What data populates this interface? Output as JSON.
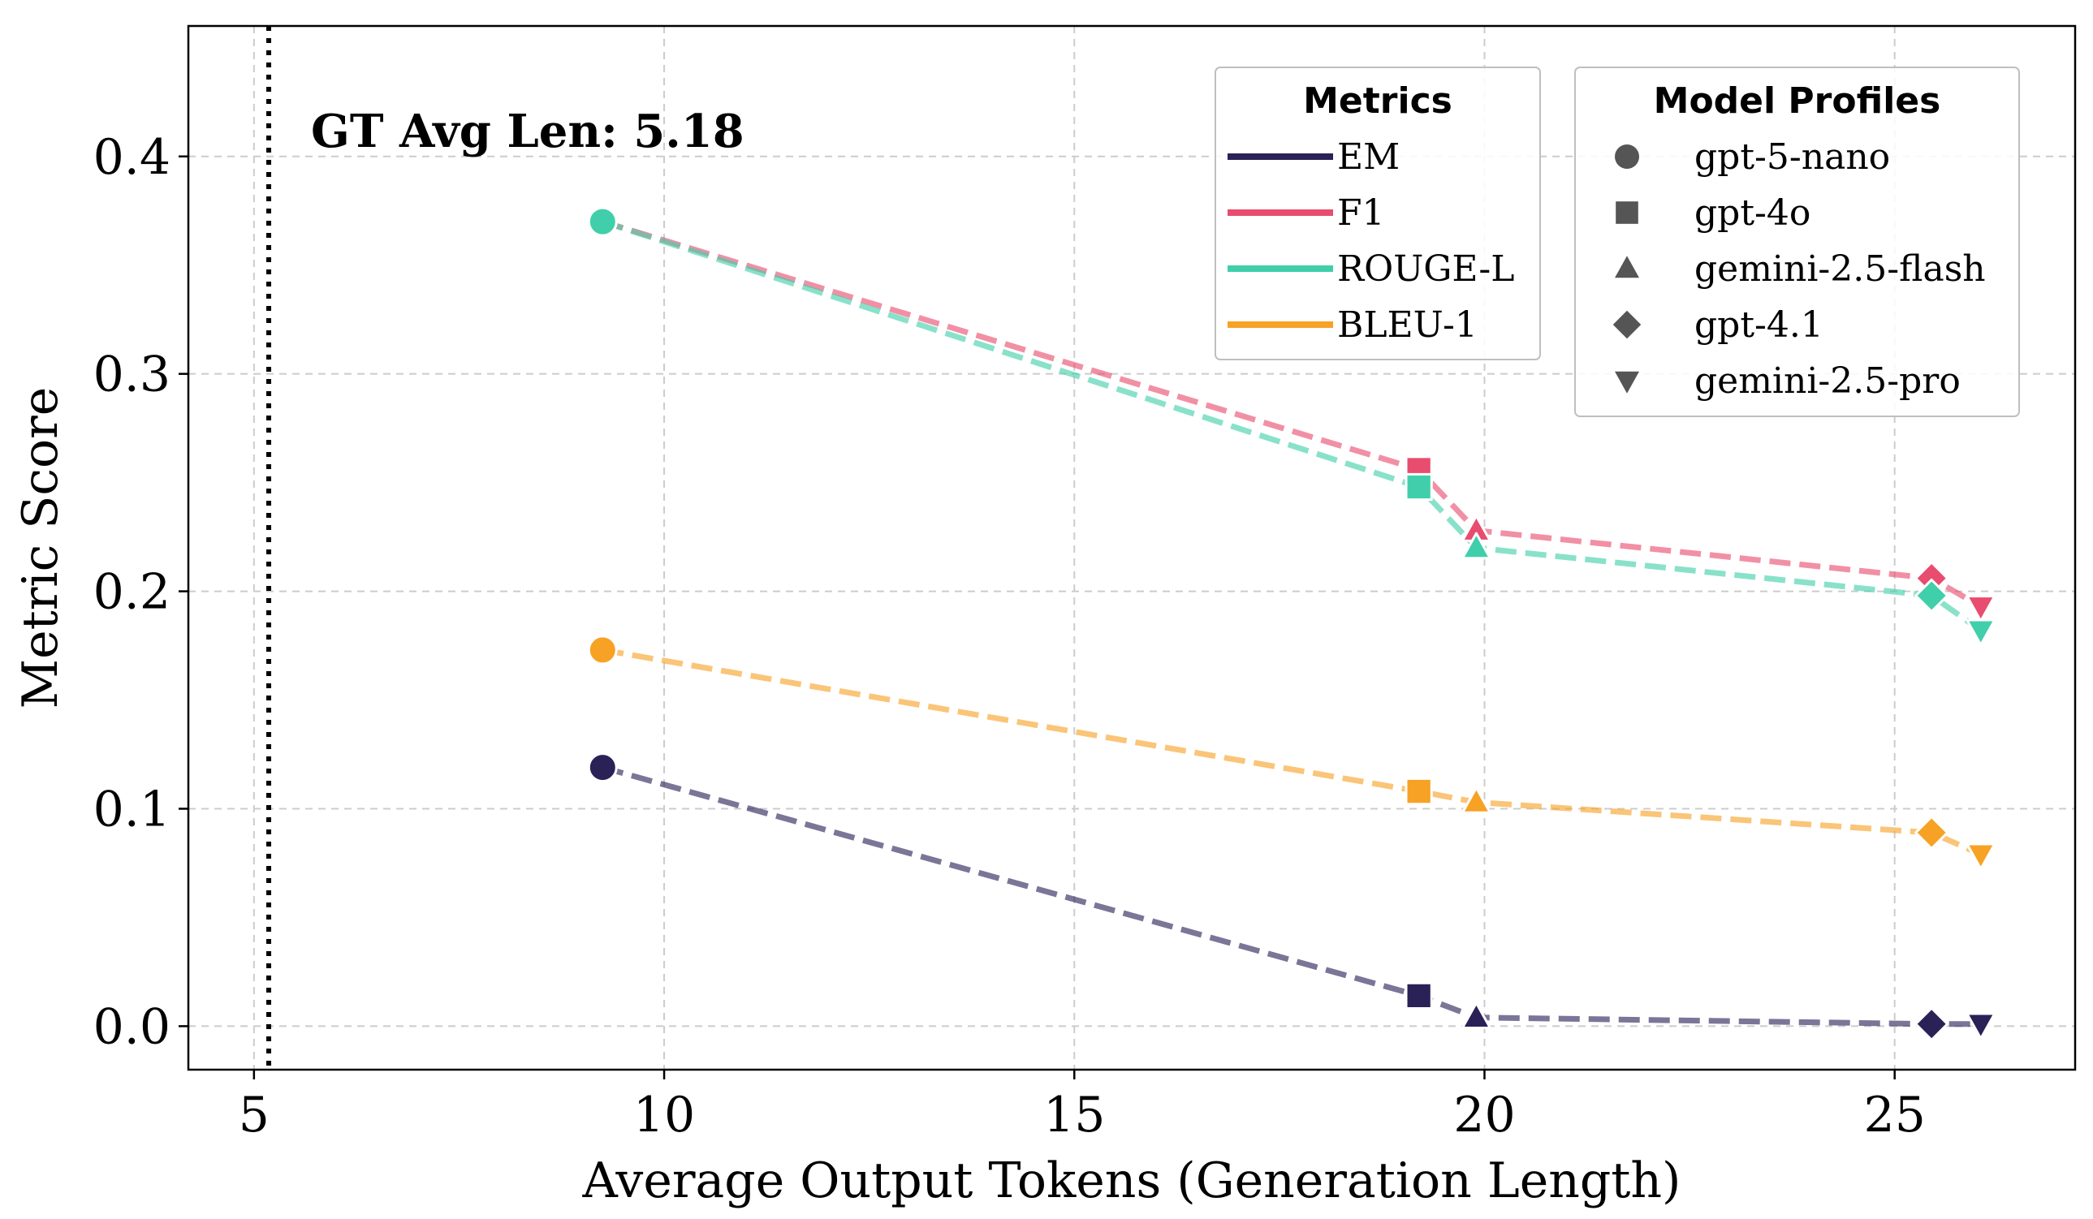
{
  "chart_data": {
    "type": "line",
    "xlabel": "Average Output Tokens (Generation Length)",
    "ylabel": "Metric Score",
    "xlim": [
      4.2,
      27.2
    ],
    "ylim": [
      -0.02,
      0.46
    ],
    "xticks": [
      5,
      10,
      15,
      20,
      25
    ],
    "yticks": [
      0.0,
      0.1,
      0.2,
      0.3,
      0.4
    ],
    "xtick_labels": [
      "5",
      "10",
      "15",
      "20",
      "25"
    ],
    "ytick_labels": [
      "0.0",
      "0.1",
      "0.2",
      "0.3",
      "0.4"
    ],
    "grid": true,
    "reference_line": {
      "x": 5.18,
      "label": "GT Avg Len: 5.18"
    },
    "models": [
      {
        "name": "gpt-5-nano",
        "marker": "circle",
        "x": 9.25
      },
      {
        "name": "gpt-4o",
        "marker": "square",
        "x": 19.2
      },
      {
        "name": "gemini-2.5-flash",
        "marker": "triangle-up",
        "x": 19.9
      },
      {
        "name": "gpt-4.1",
        "marker": "diamond",
        "x": 25.45
      },
      {
        "name": "gemini-2.5-pro",
        "marker": "triangle-down",
        "x": 26.05
      }
    ],
    "series": [
      {
        "name": "EM",
        "color": "#2a2157",
        "values": [
          0.119,
          0.014,
          0.004,
          0.001,
          0.001
        ]
      },
      {
        "name": "F1",
        "color": "#e84c6e",
        "values": [
          0.37,
          0.256,
          0.228,
          0.206,
          0.193
        ]
      },
      {
        "name": "ROUGE-L",
        "color": "#40cfaa",
        "values": [
          0.37,
          0.248,
          0.22,
          0.198,
          0.182
        ]
      },
      {
        "name": "BLEU-1",
        "color": "#f7a225",
        "values": [
          0.173,
          0.108,
          0.103,
          0.089,
          0.079
        ]
      }
    ],
    "legend_metrics": {
      "title": "Metrics",
      "placement": "top-right",
      "entries": [
        "EM",
        "F1",
        "ROUGE-L",
        "BLEU-1"
      ]
    },
    "legend_models": {
      "title": "Model Profiles",
      "placement": "top-right",
      "entries": [
        "gpt-5-nano",
        "gpt-4o",
        "gemini-2.5-flash",
        "gpt-4.1",
        "gemini-2.5-pro"
      ]
    },
    "legend_marker_color": "#555555"
  }
}
